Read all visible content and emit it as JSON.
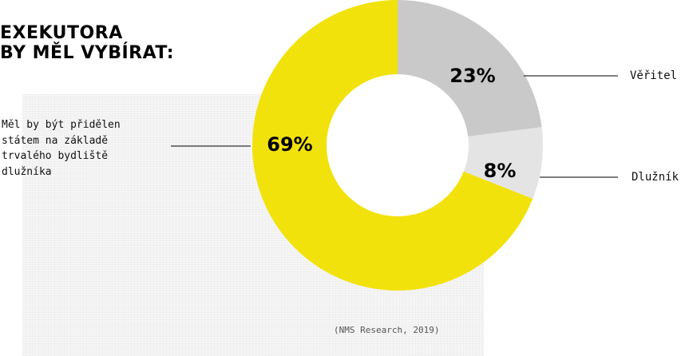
{
  "title_lines": [
    "EXEKUTORA",
    "BY MĚL VYBÍRAT:"
  ],
  "source": "(NMS Research, 2019)",
  "chart_data": {
    "type": "pie",
    "donut": true,
    "slices": [
      {
        "label": "Věřitel",
        "value": 23,
        "value_label": "23%",
        "color": "#c9c9c9"
      },
      {
        "label": "Dlužník",
        "value": 8,
        "value_label": "8%",
        "color": "#e4e4e4"
      },
      {
        "label_lines": [
          "Měl by být přidělen",
          "státem na základě",
          "trvalého bydliště",
          "dlužníka"
        ],
        "value": 69,
        "value_label": "69%",
        "color": "#f2e20b"
      }
    ]
  }
}
